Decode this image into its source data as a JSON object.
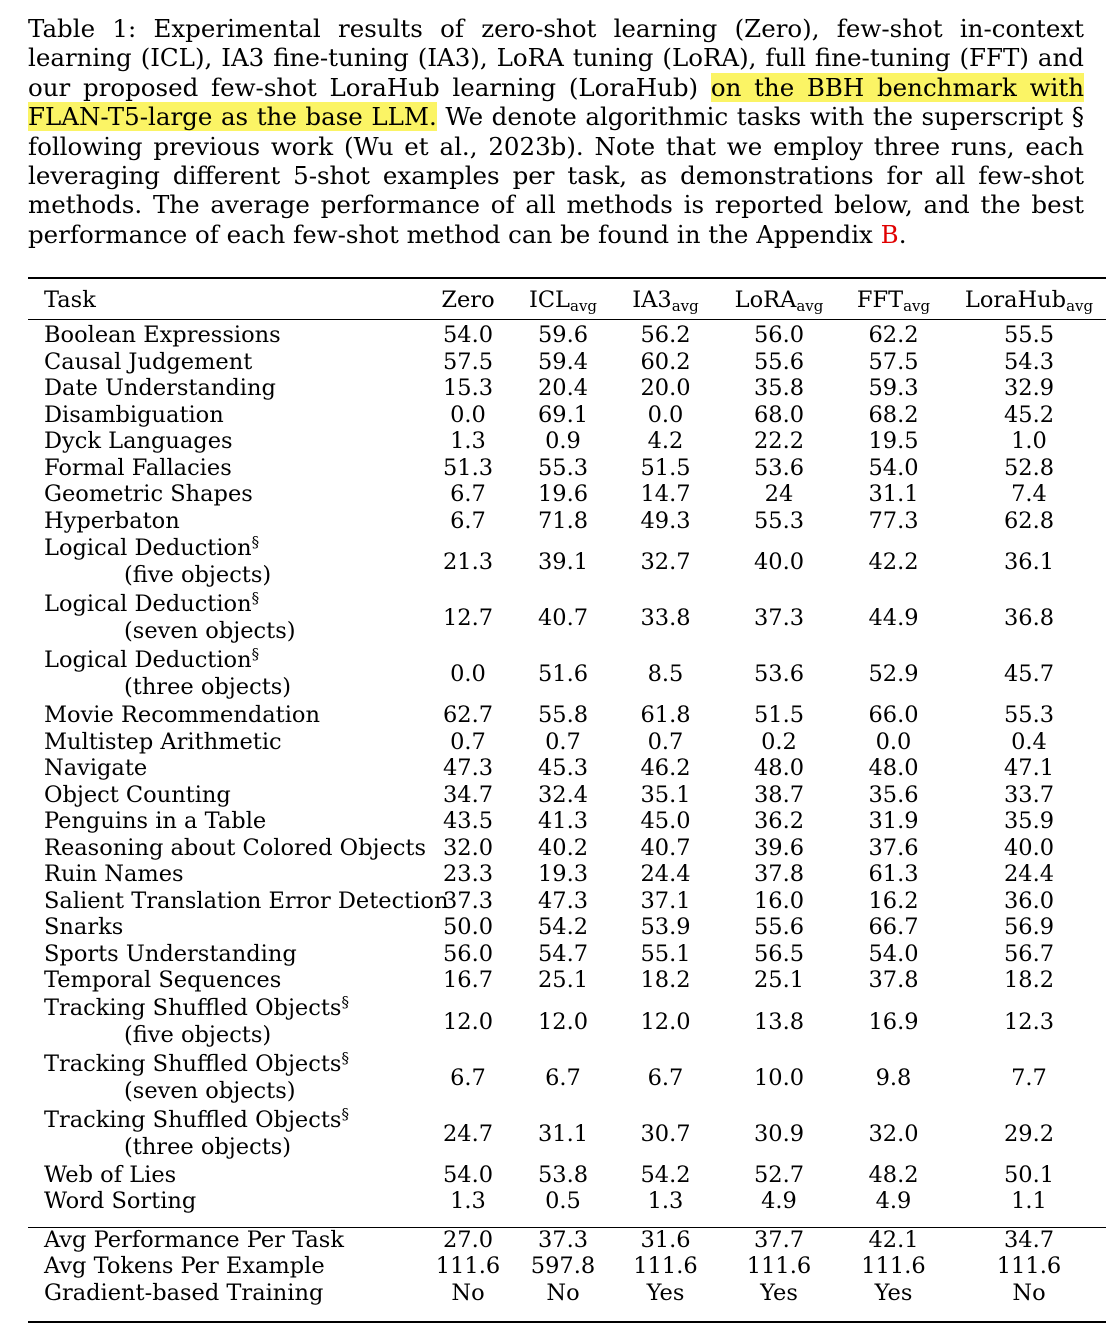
{
  "caption": {
    "part1": "Table 1: Experimental results of zero-shot learning (Zero), few-shot in-context learning (ICL), IA3 fine-tuning (IA3), LoRA tuning (LoRA), full fine-tuning (FFT) and our proposed few-shot LoraHub learning (LoraHub) ",
    "highlight": "on the BBH benchmark with FLAN-T5-large as the base LLM.",
    "part2": " We denote algorithmic tasks with the superscript § following previous work (Wu et al., 2023b). Note that we employ three runs, each leveraging different 5-shot examples per task, as demonstrations for all few-shot methods. The average performance of all methods is reported below, and the best performance of each few-shot method can be found in the Appendix ",
    "appendix_ref": "B",
    "part3": "."
  },
  "highlight_color": "#fbf465",
  "link_color": "#e00000",
  "table": {
    "columns": [
      {
        "label": "Task",
        "sub": ""
      },
      {
        "label": "Zero",
        "sub": ""
      },
      {
        "label": "ICL",
        "sub": "avg"
      },
      {
        "label": "IA3",
        "sub": "avg"
      },
      {
        "label": "LoRA",
        "sub": "avg"
      },
      {
        "label": "FFT",
        "sub": "avg"
      },
      {
        "label": "LoraHub",
        "sub": "avg"
      }
    ],
    "rows": [
      {
        "task": "Boolean Expressions",
        "values": [
          "54.0",
          "59.6",
          "56.2",
          "56.0",
          "62.2",
          "55.5"
        ]
      },
      {
        "task": "Causal Judgement",
        "values": [
          "57.5",
          "59.4",
          "60.2",
          "55.6",
          "57.5",
          "54.3"
        ]
      },
      {
        "task": "Date Understanding",
        "values": [
          "15.3",
          "20.4",
          "20.0",
          "35.8",
          "59.3",
          "32.9"
        ]
      },
      {
        "task": "Disambiguation",
        "values": [
          "0.0",
          "69.1",
          "0.0",
          "68.0",
          "68.2",
          "45.2"
        ]
      },
      {
        "task": "Dyck Languages",
        "values": [
          "1.3",
          "0.9",
          "4.2",
          "22.2",
          "19.5",
          "1.0"
        ]
      },
      {
        "task": "Formal Fallacies",
        "values": [
          "51.3",
          "55.3",
          "51.5",
          "53.6",
          "54.0",
          "52.8"
        ]
      },
      {
        "task": "Geometric Shapes",
        "values": [
          "6.7",
          "19.6",
          "14.7",
          "24",
          "31.1",
          "7.4"
        ]
      },
      {
        "task": "Hyperbaton",
        "values": [
          "6.7",
          "71.8",
          "49.3",
          "55.3",
          "77.3",
          "62.8"
        ]
      },
      {
        "task": "Logical Deduction",
        "sup": "§",
        "subtask": "(five objects)",
        "values": [
          "21.3",
          "39.1",
          "32.7",
          "40.0",
          "42.2",
          "36.1"
        ]
      },
      {
        "task": "Logical Deduction",
        "sup": "§",
        "subtask": "(seven objects)",
        "values": [
          "12.7",
          "40.7",
          "33.8",
          "37.3",
          "44.9",
          "36.8"
        ]
      },
      {
        "task": "Logical Deduction",
        "sup": "§",
        "subtask": "(three objects)",
        "values": [
          "0.0",
          "51.6",
          "8.5",
          "53.6",
          "52.9",
          "45.7"
        ]
      },
      {
        "task": "Movie Recommendation",
        "values": [
          "62.7",
          "55.8",
          "61.8",
          "51.5",
          "66.0",
          "55.3"
        ]
      },
      {
        "task": "Multistep Arithmetic",
        "values": [
          "0.7",
          "0.7",
          "0.7",
          "0.2",
          "0.0",
          "0.4"
        ]
      },
      {
        "task": "Navigate",
        "values": [
          "47.3",
          "45.3",
          "46.2",
          "48.0",
          "48.0",
          "47.1"
        ]
      },
      {
        "task": "Object Counting",
        "values": [
          "34.7",
          "32.4",
          "35.1",
          "38.7",
          "35.6",
          "33.7"
        ]
      },
      {
        "task": "Penguins in a Table",
        "values": [
          "43.5",
          "41.3",
          "45.0",
          "36.2",
          "31.9",
          "35.9"
        ]
      },
      {
        "task": "Reasoning about Colored Objects",
        "values": [
          "32.0",
          "40.2",
          "40.7",
          "39.6",
          "37.6",
          "40.0"
        ]
      },
      {
        "task": "Ruin Names",
        "values": [
          "23.3",
          "19.3",
          "24.4",
          "37.8",
          "61.3",
          "24.4"
        ]
      },
      {
        "task": "Salient Translation Error Detection",
        "values": [
          "37.3",
          "47.3",
          "37.1",
          "16.0",
          "16.2",
          "36.0"
        ]
      },
      {
        "task": "Snarks",
        "values": [
          "50.0",
          "54.2",
          "53.9",
          "55.6",
          "66.7",
          "56.9"
        ]
      },
      {
        "task": "Sports Understanding",
        "values": [
          "56.0",
          "54.7",
          "55.1",
          "56.5",
          "54.0",
          "56.7"
        ]
      },
      {
        "task": "Temporal Sequences",
        "values": [
          "16.7",
          "25.1",
          "18.2",
          "25.1",
          "37.8",
          "18.2"
        ]
      },
      {
        "task": "Tracking Shuffled Objects",
        "sup": "§",
        "subtask": "(five objects)",
        "values": [
          "12.0",
          "12.0",
          "12.0",
          "13.8",
          "16.9",
          "12.3"
        ]
      },
      {
        "task": "Tracking Shuffled Objects",
        "sup": "§",
        "subtask": "(seven objects)",
        "values": [
          "6.7",
          "6.7",
          "6.7",
          "10.0",
          "9.8",
          "7.7"
        ]
      },
      {
        "task": "Tracking Shuffled Objects",
        "sup": "§",
        "subtask": "(three objects)",
        "values": [
          "24.7",
          "31.1",
          "30.7",
          "30.9",
          "32.0",
          "29.2"
        ]
      },
      {
        "task": "Web of Lies",
        "values": [
          "54.0",
          "53.8",
          "54.2",
          "52.7",
          "48.2",
          "50.1"
        ]
      },
      {
        "task": "Word Sorting",
        "values": [
          "1.3",
          "0.5",
          "1.3",
          "4.9",
          "4.9",
          "1.1"
        ]
      }
    ],
    "summary": [
      {
        "task": "Avg Performance Per Task",
        "values": [
          "27.0",
          "37.3",
          "31.6",
          "37.7",
          "42.1",
          "34.7"
        ]
      },
      {
        "task": "Avg Tokens Per Example",
        "values": [
          "111.6",
          "597.8",
          "111.6",
          "111.6",
          "111.6",
          "111.6"
        ]
      },
      {
        "task": "Gradient-based Training",
        "values": [
          "No",
          "No",
          "Yes",
          "Yes",
          "Yes",
          "No"
        ]
      }
    ]
  }
}
